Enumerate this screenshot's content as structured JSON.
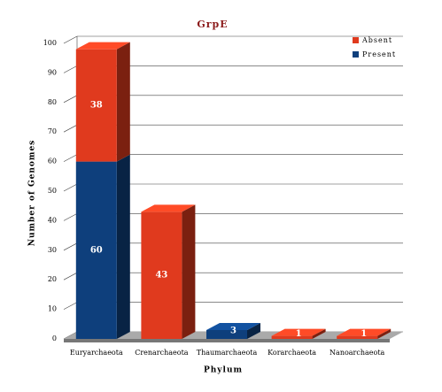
{
  "chart_data": {
    "type": "stacked_bar_3d",
    "title": "GrpE",
    "x_label": "Phylum",
    "y_label": "Number of Genomes",
    "categories": [
      "Euryarchaeota",
      "Crenarchaeota",
      "Thaumarchaeota",
      "Korarchaeota",
      "Nanoarchaeota"
    ],
    "series": [
      {
        "name": "Present",
        "color": "#0e3f7c",
        "values": [
          60,
          0,
          3,
          0,
          0
        ]
      },
      {
        "name": "Absent",
        "color": "#e03a1e",
        "values": [
          38,
          43,
          0,
          1,
          1
        ]
      }
    ],
    "ylim": [
      0,
      100
    ],
    "yticks": [
      0,
      10,
      20,
      30,
      40,
      50,
      60,
      70,
      80,
      90,
      100
    ],
    "grid": true,
    "legend": "top-right"
  }
}
